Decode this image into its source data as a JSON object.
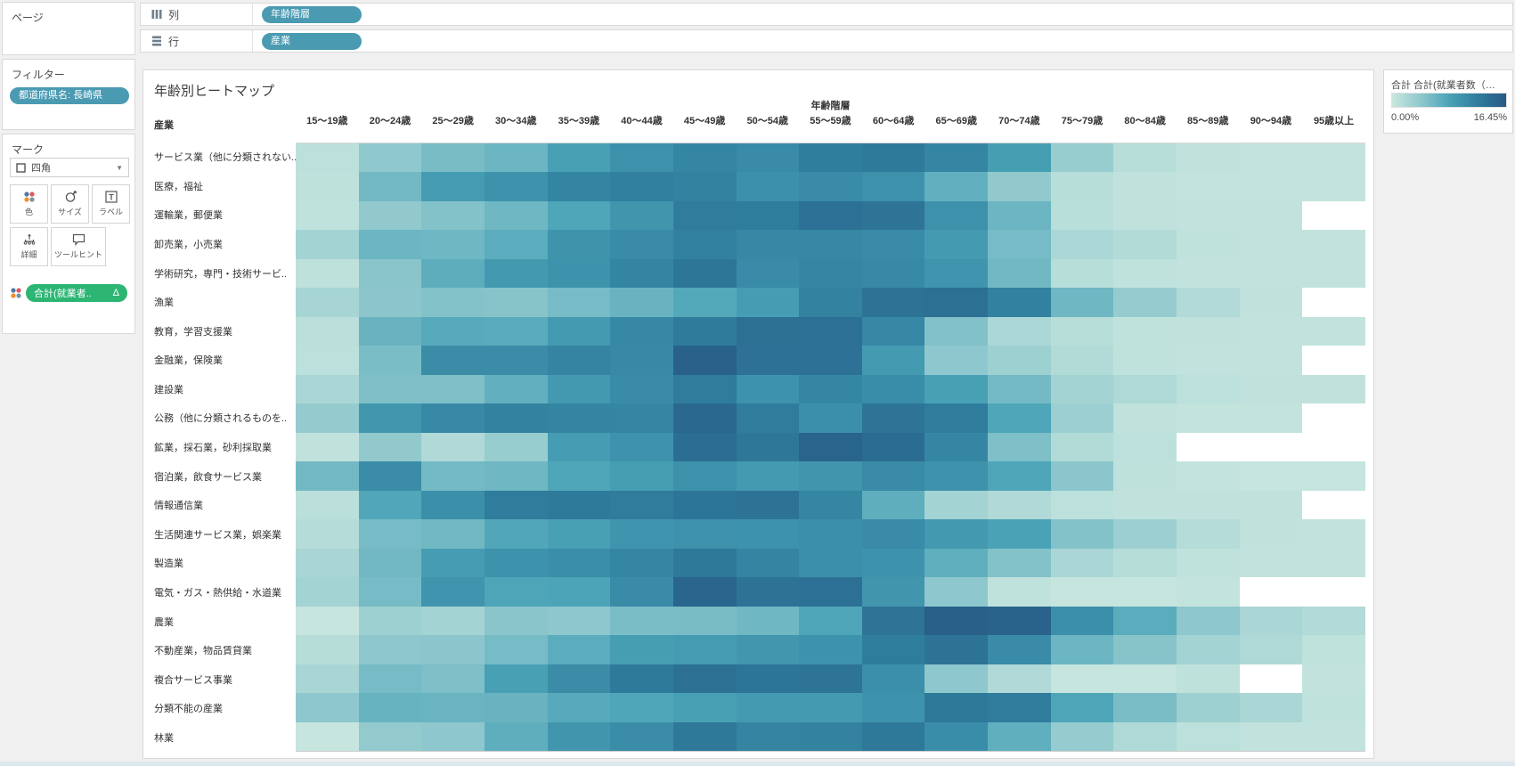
{
  "pages_panel": {
    "title": "ページ"
  },
  "filters_panel": {
    "title": "フィルター",
    "pill": "都道府県名: 長崎県"
  },
  "marks_panel": {
    "title": "マーク",
    "mark_type": "四角",
    "buttons": [
      {
        "label": "色",
        "icon": "color-dots-icon"
      },
      {
        "label": "サイズ",
        "icon": "size-icon"
      },
      {
        "label": "ラベル",
        "icon": "label-icon"
      },
      {
        "label": "詳細",
        "icon": "detail-icon"
      },
      {
        "label": "ツールヒント",
        "icon": "tooltip-icon"
      }
    ],
    "encoding_pill": {
      "label": "合計(就業者..",
      "suffix": "Δ",
      "color": "#2CB573"
    }
  },
  "shelves": {
    "columns": {
      "label": "列",
      "pill": "年齢階層"
    },
    "rows": {
      "label": "行",
      "pill": "産業"
    }
  },
  "colors": {
    "pill_teal": "#4A9AB2",
    "pill_green": "#2CB573",
    "background": "#f0f0f0",
    "missing_cell": "#ffffff"
  },
  "legend": {
    "title": "合計 合計(就業者数（…",
    "min_label": "0.00%",
    "max_label": "16.45%",
    "gradient": [
      "#c9e7df",
      "#8fc8cd",
      "#4aa3b7",
      "#2f7d9d",
      "#275a86"
    ]
  },
  "chart_data": {
    "type": "heatmap",
    "title": "年齢別ヒートマップ",
    "col_axis_title": "年齢階層",
    "row_axis_title": "産業",
    "value_unit": "%",
    "value_min": 0.0,
    "value_max": 16.45,
    "color_stops": [
      "#c9e7df",
      "#8fc8cd",
      "#4aa3b7",
      "#2f7d9d",
      "#275a86"
    ],
    "columns": [
      "15〜19歳",
      "20〜24歳",
      "25〜29歳",
      "30〜34歳",
      "35〜39歳",
      "40〜44歳",
      "45〜49歳",
      "50〜54歳",
      "55〜59歳",
      "60〜64歳",
      "65〜69歳",
      "70〜74歳",
      "75〜79歳",
      "80〜84歳",
      "85〜89歳",
      "90〜94歳",
      "95歳以上"
    ],
    "rows": [
      "サービス業（他に分類されない..",
      "医療，福祉",
      "運輸業，郵便業",
      "卸売業，小売業",
      "学術研究，専門・技術サービ..",
      "漁業",
      "教育，学習支援業",
      "金融業，保険業",
      "建設業",
      "公務（他に分類されるものを..",
      "鉱業，採石業，砂利採取業",
      "宿泊業，飲食サービス業",
      "情報通信業",
      "生活関連サービス業，娯楽業",
      "製造業",
      "電気・ガス・熱供給・水道業",
      "農業",
      "不動産業，物品賃貸業",
      "複合サービス事業",
      "分類不能の産業",
      "林業"
    ],
    "values": [
      [
        0.9,
        4.1,
        5.4,
        6.2,
        8.6,
        10.2,
        11.4,
        10.8,
        12.2,
        12.7,
        11.4,
        8.8,
        3.5,
        1.2,
        0.6,
        0.4,
        0.4
      ],
      [
        0.8,
        5.8,
        9.0,
        10.1,
        11.5,
        12.0,
        11.8,
        10.3,
        10.8,
        10.2,
        6.8,
        4.0,
        1.2,
        0.6,
        0.4,
        0.4,
        0.4
      ],
      [
        0.7,
        4.0,
        4.8,
        6.0,
        7.9,
        9.6,
        12.4,
        12.3,
        13.8,
        13.4,
        10.2,
        6.2,
        1.1,
        0.6,
        0.5,
        0.5,
        null
      ],
      [
        2.6,
        6.2,
        6.0,
        7.2,
        9.9,
        10.8,
        11.9,
        11.2,
        11.2,
        10.8,
        9.1,
        5.6,
        2.1,
        1.6,
        0.7,
        0.5,
        0.5
      ],
      [
        0.8,
        4.4,
        7.1,
        9.3,
        10.0,
        11.5,
        13.2,
        10.8,
        11.4,
        11.0,
        9.8,
        5.9,
        1.2,
        0.7,
        0.5,
        0.5,
        0.5
      ],
      [
        2.4,
        4.3,
        4.8,
        4.6,
        5.6,
        6.4,
        7.7,
        8.9,
        11.8,
        13.5,
        13.9,
        11.9,
        6.0,
        3.6,
        1.7,
        0.6,
        null
      ],
      [
        1.0,
        6.4,
        7.5,
        7.3,
        9.1,
        11.1,
        12.6,
        13.9,
        13.8,
        11.3,
        4.9,
        2.1,
        1.2,
        0.7,
        0.6,
        0.5,
        0.5
      ],
      [
        0.9,
        5.3,
        10.7,
        10.7,
        11.6,
        11.0,
        15.6,
        13.6,
        13.6,
        9.1,
        4.2,
        3.1,
        1.6,
        0.7,
        0.5,
        0.5,
        null
      ],
      [
        2.2,
        5.1,
        5.1,
        6.8,
        9.3,
        10.8,
        12.5,
        10.0,
        11.4,
        10.6,
        8.5,
        5.7,
        2.7,
        1.9,
        0.9,
        0.6,
        0.6
      ],
      [
        3.7,
        9.5,
        11.0,
        11.8,
        11.5,
        11.4,
        14.8,
        12.5,
        10.4,
        13.4,
        12.5,
        7.9,
        3.2,
        0.6,
        0.4,
        0.4,
        null
      ],
      [
        0.6,
        4.0,
        1.8,
        3.5,
        8.9,
        10.1,
        14.1,
        13.0,
        15.3,
        14.3,
        11.4,
        5.1,
        1.6,
        0.9,
        null,
        null,
        null
      ],
      [
        5.8,
        10.7,
        5.7,
        6.0,
        7.9,
        8.8,
        10.2,
        9.2,
        9.6,
        10.8,
        10.1,
        8.0,
        4.3,
        0.8,
        0.4,
        0.3,
        0.3
      ],
      [
        1.0,
        7.8,
        10.4,
        12.5,
        12.7,
        12.5,
        13.3,
        13.5,
        11.4,
        7.0,
        2.6,
        1.8,
        0.9,
        0.6,
        0.6,
        0.6,
        null
      ],
      [
        1.4,
        5.6,
        5.9,
        7.8,
        8.5,
        9.7,
        10.2,
        10.0,
        10.4,
        10.8,
        9.3,
        8.3,
        4.8,
        3.2,
        1.4,
        0.6,
        0.5
      ],
      [
        2.3,
        5.9,
        8.9,
        10.0,
        10.5,
        11.4,
        12.9,
        11.6,
        10.4,
        10.0,
        6.9,
        4.8,
        2.2,
        1.3,
        0.7,
        0.5,
        0.5
      ],
      [
        2.6,
        5.6,
        9.8,
        8.0,
        8.1,
        10.8,
        15.2,
        13.5,
        13.7,
        9.6,
        4.2,
        0.7,
        0.3,
        0.3,
        0.4,
        null,
        null
      ],
      [
        0.3,
        3.1,
        2.6,
        4.4,
        4.2,
        5.3,
        5.4,
        6.0,
        8.0,
        13.4,
        15.7,
        15.4,
        10.4,
        7.2,
        4.2,
        2.2,
        1.7
      ],
      [
        1.3,
        4.2,
        4.3,
        5.6,
        7.2,
        8.8,
        9.0,
        9.5,
        10.0,
        12.3,
        13.5,
        10.8,
        6.2,
        4.6,
        2.6,
        1.9,
        0.7
      ],
      [
        2.3,
        5.6,
        5.1,
        8.5,
        10.7,
        12.7,
        13.9,
        13.3,
        13.4,
        10.4,
        4.2,
        1.8,
        0.3,
        0.3,
        0.8,
        null,
        0.5
      ],
      [
        4.2,
        6.5,
        6.3,
        6.4,
        7.5,
        7.9,
        8.5,
        9.1,
        9.1,
        10.0,
        12.9,
        12.5,
        8.0,
        5.3,
        3.1,
        2.2,
        0.7
      ],
      [
        0.2,
        3.8,
        4.2,
        7.0,
        9.6,
        10.7,
        12.9,
        11.6,
        11.8,
        12.9,
        10.6,
        6.9,
        3.6,
        1.9,
        0.9,
        0.5,
        0.5
      ]
    ]
  }
}
